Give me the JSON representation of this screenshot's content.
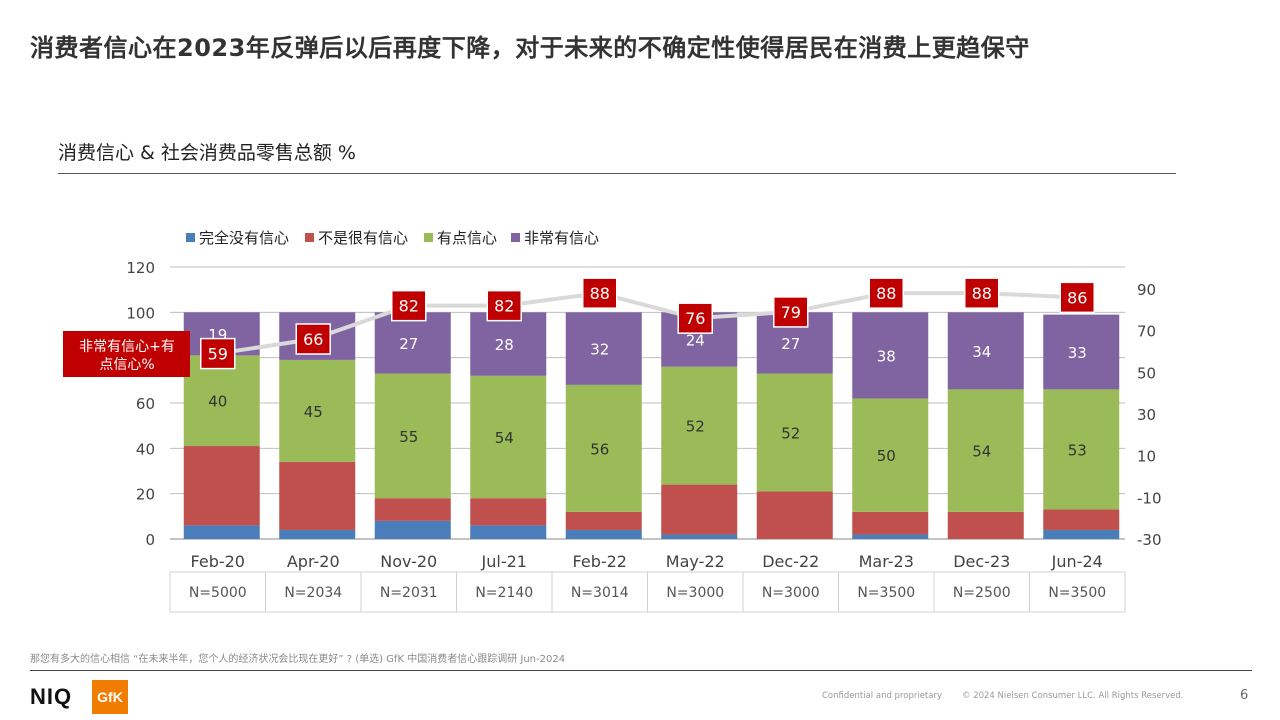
{
  "title": "消费者信心在2023年反弹后以后再度下降，对于未来的不确定性使得居民在消费上更趋保守",
  "subtitle": "消费信心 & 社会消费品零售总额 %",
  "footnote": "那您有多大的信心相信 “在未来半年，您个人的经济状况会比现在更好” ? (单选) GfK 中国消费者信心跟踪调研 Jun-2024",
  "footer": {
    "logo_niq": "NIQ",
    "logo_gfk": "GfK",
    "confidential": "Confidential and proprietary",
    "copyright": "© 2024 Nielsen Consumer LLC. All Rights Reserved.",
    "page_number": "6"
  },
  "colors": {
    "series": [
      "#4a7ebb",
      "#c0504d",
      "#9bbb59",
      "#8064a2"
    ],
    "callout": "#c00000",
    "line": "#d9d9d9"
  },
  "chart_data": {
    "type": "bar",
    "stacked": true,
    "categories": [
      "Feb-20",
      "Apr-20",
      "Nov-20",
      "Jul-21",
      "Feb-22",
      "May-22",
      "Dec-22",
      "Mar-23",
      "Dec-23",
      "Jun-24"
    ],
    "sample_sizes": [
      "N=5000",
      "N=2034",
      "N=2031",
      "N=2140",
      "N=3014",
      "N=3000",
      "N=3000",
      "N=3500",
      "N=2500",
      "N=3500"
    ],
    "series": [
      {
        "name": "完全没有信心",
        "values": [
          6,
          4,
          8,
          6,
          4,
          2,
          0,
          2,
          0,
          4
        ],
        "labels": [
          "",
          "",
          "",
          "",
          "",
          "",
          "",
          "",
          "",
          ""
        ]
      },
      {
        "name": "不是很有信心",
        "values": [
          35,
          30,
          10,
          12,
          8,
          22,
          21,
          10,
          12,
          9
        ],
        "labels": [
          "",
          "",
          "",
          "",
          "",
          "",
          "",
          "",
          "",
          ""
        ]
      },
      {
        "name": "有点信心",
        "values": [
          40,
          45,
          55,
          54,
          56,
          52,
          52,
          50,
          54,
          53
        ],
        "labels": [
          "40",
          "45",
          "55",
          "54",
          "56",
          "52",
          "52",
          "50",
          "54",
          "53"
        ]
      },
      {
        "name": "非常有信心",
        "values": [
          19,
          21,
          27,
          28,
          32,
          24,
          27,
          38,
          34,
          33
        ],
        "labels": [
          "19",
          "21",
          "27",
          "28",
          "32",
          "24",
          "27",
          "38",
          "34",
          "33"
        ]
      }
    ],
    "line": {
      "name": "非常有信心+有点信心%",
      "values": [
        59,
        66,
        82,
        82,
        88,
        76,
        79,
        88,
        88,
        86
      ],
      "labels": [
        "59",
        "66",
        "82",
        "82",
        "88",
        "76",
        "79",
        "88",
        "88",
        "86"
      ]
    },
    "y_left": {
      "lim": [
        0,
        120
      ],
      "ticks": [
        "0",
        "20",
        "40",
        "60",
        "80",
        "100",
        "120"
      ]
    },
    "y_right": {
      "lim": [
        -30,
        100
      ],
      "ticks": [
        "-30",
        "-10",
        "10",
        "30",
        "50",
        "70",
        "90"
      ]
    },
    "grid": true,
    "legend_position": "top-left"
  }
}
